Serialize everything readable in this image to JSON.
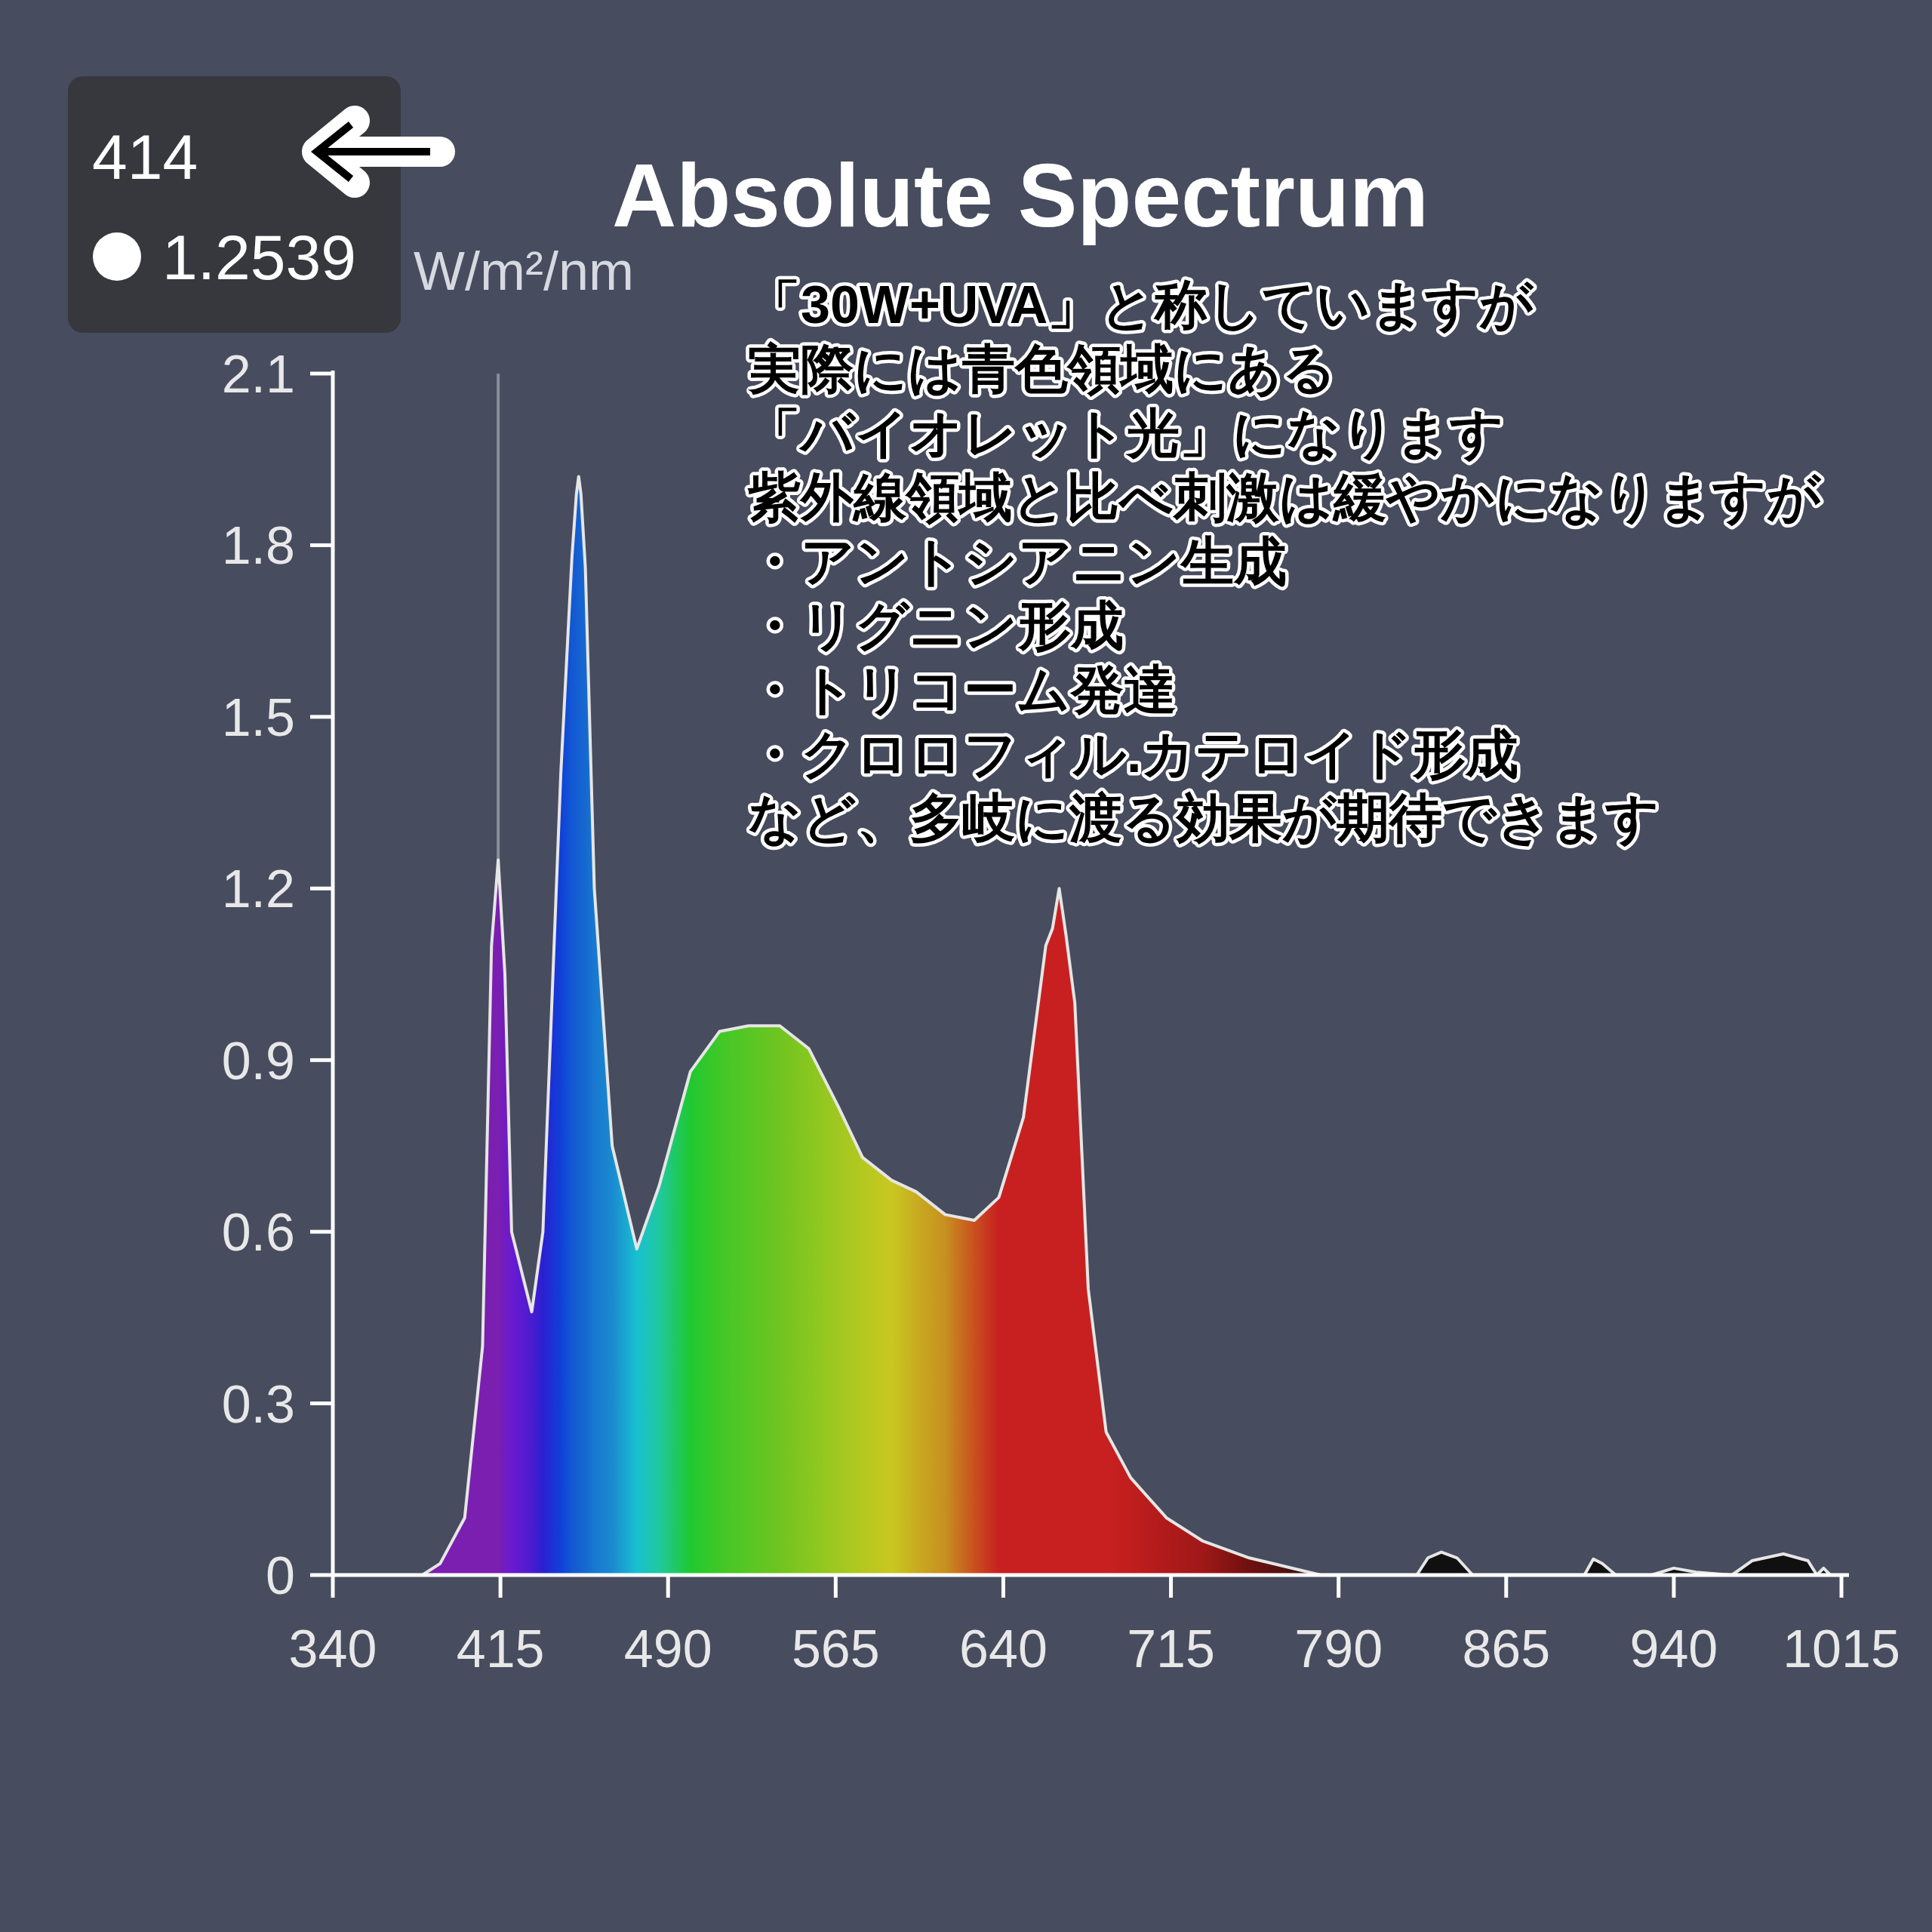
{
  "chart_data": {
    "type": "area",
    "title": "Absolute Spectrum",
    "ylabel": "W/m²/nm",
    "annotations": [
      "414",
      "1.2539",
      "「30W+UVA」と称していますが",
      "実際には青色領域にある",
      "「バイオレット光」になります",
      "紫外線領域と比べ刺激は緩やかになりますが",
      "・アントシアニン生成",
      "・リグニン形成",
      "・トリコーム発達",
      "・クロロフィル.カテロイド形成",
      "など、多岐に渡る効果が期待できます"
    ],
    "x": [
      380,
      388,
      399,
      407,
      411,
      414,
      417,
      420,
      429,
      434,
      442,
      447,
      449,
      450,
      451,
      453,
      457,
      465,
      476,
      486,
      500,
      513,
      526,
      540,
      553,
      566,
      577,
      590,
      601,
      614,
      627,
      638,
      649,
      659,
      662,
      665,
      668,
      672,
      678,
      686,
      697,
      713,
      729,
      750,
      782,
      825,
      830,
      836,
      843,
      850,
      900,
      904,
      908,
      914,
      930,
      940,
      950,
      966,
      975,
      989,
      1000,
      1004,
      1007,
      1010
    ],
    "values": [
      0,
      0.02,
      0.1,
      0.4,
      1.1,
      1.25,
      1.05,
      0.6,
      0.46,
      0.6,
      1.4,
      1.78,
      1.89,
      1.92,
      1.89,
      1.76,
      1.2,
      0.75,
      0.57,
      0.68,
      0.88,
      0.95,
      0.96,
      0.96,
      0.92,
      0.82,
      0.73,
      0.69,
      0.67,
      0.63,
      0.62,
      0.66,
      0.8,
      1.1,
      1.13,
      1.2,
      1.12,
      1.0,
      0.5,
      0.25,
      0.17,
      0.1,
      0.06,
      0.03,
      0,
      0,
      0.03,
      0.04,
      0.03,
      0,
      0,
      0.028,
      0.02,
      0,
      0,
      0.012,
      0.005,
      0,
      0.025,
      0.037,
      0.025,
      0,
      0.012,
      0
    ],
    "color": "#e6e6e6",
    "colors": [
      "#7a1fb0",
      "#7a1fb0",
      "#7a1fb0",
      "#7a1fb0",
      "#7a1fb0",
      "#7a1fb0",
      "#721cc0",
      "#6a1ad0",
      "#4a1cd0",
      "#2a20d0",
      "#1040d8",
      "#1258d4",
      "#145cd2",
      "#1560d0",
      "#1564d0",
      "#1668d0",
      "#1878d0",
      "#1a8ad0",
      "#18c0d0",
      "#20c8a0",
      "#20c830",
      "#40c828",
      "#58c624",
      "#70c420",
      "#88c620",
      "#a0c820",
      "#b4c820",
      "#c8c820",
      "#c8ac20",
      "#c89020",
      "#c85020",
      "#c82020",
      "#c82020",
      "#c82020",
      "#c82020",
      "#c82020",
      "#c82020",
      "#c82020",
      "#c82020",
      "#c82020",
      "#c01e1e",
      "#b01a1a",
      "#a01818",
      "#701010",
      "#301010",
      "#101010",
      "#101010",
      "#101010",
      "#101010",
      "#101010",
      "#101010",
      "#101010",
      "#101010",
      "#101010",
      "#101010",
      "#101010",
      "#101010",
      "#101010",
      "#101010",
      "#101010",
      "#101010",
      "#101010",
      "#101010",
      "#101010"
    ],
    "xlim": [
      340,
      1015
    ],
    "xticks": [
      340,
      415,
      490,
      565,
      640,
      715,
      790,
      865,
      940,
      1015
    ],
    "ylim": [
      0,
      2.1
    ],
    "yticks": [
      0,
      0.3,
      0.6,
      0.9,
      1.2,
      1.5,
      1.8,
      2.1
    ],
    "ref_lines": [
      {
        "axis": "x",
        "value": 414,
        "color": "#8a8e98"
      }
    ]
  }
}
